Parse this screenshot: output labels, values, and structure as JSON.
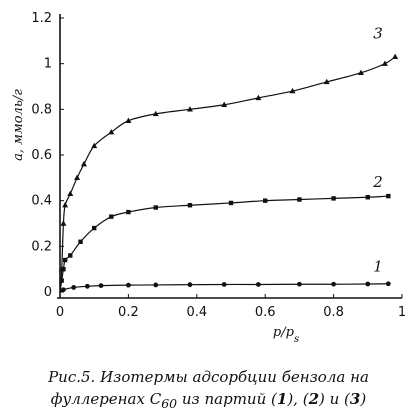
{
  "chart_data": {
    "type": "line",
    "xlabel": "p/p",
    "xlabel_subscript": "s",
    "ylabel": "a, ммоль/г",
    "xlim": [
      0,
      1.0
    ],
    "ylim": [
      0,
      1.2
    ],
    "x_ticks": [
      {
        "value": 0,
        "label": "0"
      },
      {
        "value": 0.2,
        "label": "0.2"
      },
      {
        "value": 0.4,
        "label": "0.4"
      },
      {
        "value": 0.6,
        "label": "0.6"
      },
      {
        "value": 0.8,
        "label": "0.8"
      },
      {
        "value": 1.0,
        "label": "1"
      }
    ],
    "y_ticks": [
      {
        "value": 0,
        "label": "0"
      },
      {
        "value": 0.2,
        "label": "0.2"
      },
      {
        "value": 0.4,
        "label": "0.4"
      },
      {
        "value": 0.6,
        "label": "0.6"
      },
      {
        "value": 0.8,
        "label": "0.8"
      },
      {
        "value": 1.0,
        "label": "1"
      },
      {
        "value": 1.2,
        "label": "1.2"
      }
    ],
    "series": [
      {
        "name": "1",
        "marker": "circle",
        "label_anchor": [
          0.93,
          0.09
        ],
        "points": [
          [
            0.0,
            0.0
          ],
          [
            0.01,
            0.01
          ],
          [
            0.04,
            0.02
          ],
          [
            0.08,
            0.025
          ],
          [
            0.12,
            0.028
          ],
          [
            0.2,
            0.03
          ],
          [
            0.28,
            0.031
          ],
          [
            0.38,
            0.032
          ],
          [
            0.48,
            0.033
          ],
          [
            0.58,
            0.033
          ],
          [
            0.7,
            0.034
          ],
          [
            0.8,
            0.034
          ],
          [
            0.9,
            0.035
          ],
          [
            0.96,
            0.036
          ]
        ]
      },
      {
        "name": "2",
        "marker": "square",
        "label_anchor": [
          0.93,
          0.46
        ],
        "points": [
          [
            0.0,
            0.0
          ],
          [
            0.005,
            0.05
          ],
          [
            0.01,
            0.1
          ],
          [
            0.015,
            0.14
          ],
          [
            0.03,
            0.16
          ],
          [
            0.06,
            0.22
          ],
          [
            0.1,
            0.28
          ],
          [
            0.15,
            0.33
          ],
          [
            0.2,
            0.35
          ],
          [
            0.28,
            0.37
          ],
          [
            0.38,
            0.38
          ],
          [
            0.5,
            0.39
          ],
          [
            0.6,
            0.4
          ],
          [
            0.7,
            0.405
          ],
          [
            0.8,
            0.41
          ],
          [
            0.9,
            0.415
          ],
          [
            0.96,
            0.42
          ]
        ]
      },
      {
        "name": "3",
        "marker": "triangle",
        "label_anchor": [
          0.93,
          1.11
        ],
        "points": [
          [
            0.0,
            0.0
          ],
          [
            0.005,
            0.1
          ],
          [
            0.01,
            0.3
          ],
          [
            0.015,
            0.38
          ],
          [
            0.03,
            0.43
          ],
          [
            0.05,
            0.5
          ],
          [
            0.07,
            0.56
          ],
          [
            0.1,
            0.64
          ],
          [
            0.15,
            0.7
          ],
          [
            0.2,
            0.75
          ],
          [
            0.28,
            0.78
          ],
          [
            0.38,
            0.8
          ],
          [
            0.48,
            0.82
          ],
          [
            0.58,
            0.85
          ],
          [
            0.68,
            0.88
          ],
          [
            0.78,
            0.92
          ],
          [
            0.88,
            0.96
          ],
          [
            0.95,
            1.0
          ],
          [
            0.98,
            1.03
          ]
        ]
      }
    ]
  },
  "caption": {
    "line1": "Рис.5. Изотермы адсорбции бензола на",
    "line2_prefix": "фуллеренах С",
    "line2_sub": "60",
    "line2_middle": " из партий (",
    "bold1": "1",
    "sep1": "), (",
    "bold2": "2",
    "sep2": ") и (",
    "bold3": "3",
    "suffix": ")"
  }
}
